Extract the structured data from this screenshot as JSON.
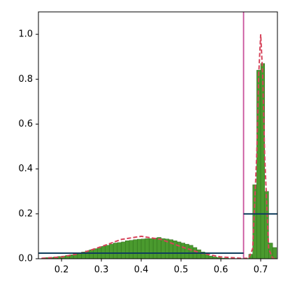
{
  "chart_data": {
    "type": "histogram",
    "bins": [
      0.15,
      0.16,
      0.17,
      0.18,
      0.19,
      0.2,
      0.21,
      0.22,
      0.23,
      0.24,
      0.25,
      0.26,
      0.27,
      0.28,
      0.29,
      0.3,
      0.31,
      0.32,
      0.33,
      0.34,
      0.35,
      0.36,
      0.37,
      0.38,
      0.39,
      0.4,
      0.41,
      0.42,
      0.43,
      0.44,
      0.45,
      0.46,
      0.47,
      0.48,
      0.49,
      0.5,
      0.51,
      0.52,
      0.53,
      0.54,
      0.55,
      0.56,
      0.57,
      0.58,
      0.59,
      0.6,
      0.61,
      0.62,
      0.63,
      0.64,
      0.65,
      0.66,
      0.67,
      0.68,
      0.69,
      0.7,
      0.71,
      0.72,
      0.73,
      0.74
    ],
    "values": [
      0.003,
      0.005,
      0.006,
      0.008,
      0.01,
      0.012,
      0.015,
      0.018,
      0.022,
      0.027,
      0.03,
      0.035,
      0.04,
      0.045,
      0.05,
      0.055,
      0.06,
      0.065,
      0.07,
      0.072,
      0.075,
      0.08,
      0.082,
      0.085,
      0.087,
      0.088,
      0.09,
      0.09,
      0.092,
      0.095,
      0.09,
      0.088,
      0.085,
      0.08,
      0.075,
      0.07,
      0.065,
      0.06,
      0.05,
      0.04,
      0.03,
      0.02,
      0.012,
      0.008,
      0.005,
      0.003,
      0.002,
      0.001,
      0.001,
      0,
      0,
      0.001,
      0.02,
      0.33,
      0.84,
      0.87,
      0.3,
      0.07,
      0.05
    ],
    "color": "#4a9a2e",
    "curve": {
      "color": "#d6435a",
      "x": [
        0.15,
        0.2,
        0.25,
        0.3,
        0.35,
        0.4,
        0.45,
        0.5,
        0.55,
        0.6,
        0.65,
        0.67,
        0.68,
        0.69,
        0.695,
        0.7,
        0.705,
        0.71,
        0.72,
        0.73,
        0.74
      ],
      "values": [
        0.002,
        0.008,
        0.025,
        0.054,
        0.086,
        0.1,
        0.086,
        0.054,
        0.025,
        0.008,
        0.002,
        0.002,
        0.045,
        0.46,
        0.82,
        1.0,
        0.82,
        0.46,
        0.045,
        0.002,
        0.001
      ]
    },
    "vline": {
      "x": 0.657,
      "color": "#c9509a"
    },
    "hlines": {
      "color": "#0f3d5c",
      "segments": [
        {
          "x": [
            0.142,
            0.657
          ],
          "y": 0.025
        },
        {
          "x": [
            0.657,
            0.742
          ],
          "y": 0.2
        }
      ]
    },
    "xlim": [
      0.142,
      0.742
    ],
    "ylim": [
      0,
      1.1
    ],
    "xticks": [
      0.2,
      0.3,
      0.4,
      0.5,
      0.6,
      0.7
    ],
    "yticks": [
      {
        "value": 0,
        "label": "0.0"
      },
      0.2,
      0.4,
      0.6,
      0.8,
      {
        "value": 1,
        "label": "1.0"
      }
    ]
  }
}
